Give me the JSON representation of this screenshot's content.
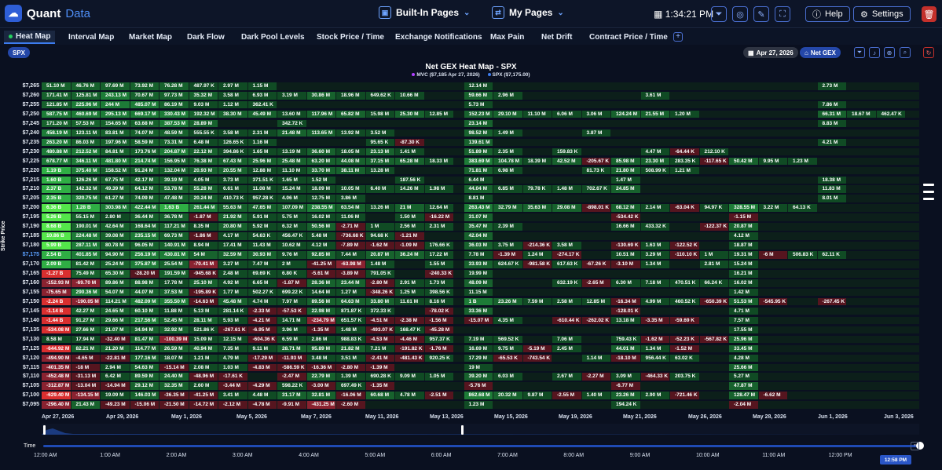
{
  "app": {
    "name_main": "Quant",
    "name_accent": "Data"
  },
  "header": {
    "builtin_pages": "Built-In Pages",
    "my_pages": "My Pages",
    "clock": "1:34:21 PM",
    "help": "Help",
    "settings": "Settings"
  },
  "tabs": [
    "Heat Map",
    "Interval Map",
    "Market Map",
    "Dark Flow",
    "Dark Pool Levels",
    "Stock Price / Time",
    "Exchange Notifications",
    "Max Pain",
    "Net Drift",
    "Contract Price / Time"
  ],
  "active_tab": "Heat Map",
  "toolbar": {
    "ticker": "SPX",
    "date": "Apr 27, 2026",
    "metric": "Net GEX"
  },
  "chart": {
    "title": "Net GEX Heat Map - SPX",
    "legend": [
      {
        "label": "MVC ($7,185 Apr 27, 2026)",
        "color": "#b040ff"
      },
      {
        "label": "SPX ($7,175.00)",
        "color": "#3c7cf0"
      }
    ],
    "y_axis_label": "Strike Price",
    "dates": [
      "Apr 27, 2026",
      "Apr 29, 2026",
      "May 1, 2026",
      "May 5, 2026",
      "May 7, 2026",
      "May 11, 2026",
      "May 13, 2026",
      "May 15, 2026",
      "May 19, 2026",
      "May 21, 2026",
      "May 26, 2026",
      "May 28, 2026",
      "Jun 1, 2026",
      "Jun 3, 2026"
    ],
    "time_ticks": [
      "12:00 AM",
      "1:00 AM",
      "2:00 AM",
      "3:00 AM",
      "4:00 AM",
      "5:00 AM",
      "6:00 AM",
      "7:00 AM",
      "8:00 AM",
      "9:00 AM",
      "10:00 AM",
      "11:00 AM",
      "12:00 PM"
    ],
    "time_label": "Time",
    "current_time": "12:58 PM",
    "spx_strike": "$7,175"
  },
  "chart_data": {
    "type": "heatmap",
    "title": "Net GEX Heat Map - SPX",
    "ylabel": "Strike Price",
    "strikes": [
      "$7,265",
      "$7,260",
      "$7,255",
      "$7,250",
      "$7,245",
      "$7,240",
      "$7,235",
      "$7,230",
      "$7,225",
      "$7,220",
      "$7,215",
      "$7,210",
      "$7,205",
      "$7,200",
      "$7,195",
      "$7,190",
      "$7,185",
      "$7,180",
      "$7,175",
      "$7,170",
      "$7,165",
      "$7,160",
      "$7,155",
      "$7,150",
      "$7,145",
      "$7,140",
      "$7,135",
      "$7,130",
      "$7,125",
      "$7,120",
      "$7,115",
      "$7,110",
      "$7,105",
      "$7,100",
      "$7,095"
    ],
    "rows": [
      [
        "51.10 M",
        "46.76 M",
        "97.69 M",
        "73.92 M",
        "76.28 M",
        "487.97 K",
        "2.97 M",
        "1.15 M",
        "",
        "",
        "",
        "",
        "",
        "",
        "",
        "12.14 M",
        "",
        "",
        "",
        "",
        "",
        "",
        "",
        "",
        "",
        "",
        "",
        "2.73 M",
        "",
        ""
      ],
      [
        "171.41 M",
        "125.81 M",
        "243.13 M",
        "70.67 M",
        "97.73 M",
        "35.32 M",
        "3.58 M",
        "6.93 M",
        "3.19 M",
        "30.86 M",
        "18.96 M",
        "649.62 K",
        "10.66 M",
        "",
        "",
        "59.66 M",
        "2.96 M",
        "",
        "",
        "",
        "",
        "3.61 M",
        "",
        "",
        "",
        "",
        "",
        "",
        "",
        ""
      ],
      [
        "121.85 M",
        "225.96 M",
        "244 M",
        "485.07 M",
        "86.19 M",
        "9.03 M",
        "1.12 M",
        "362.41 K",
        "",
        "",
        "",
        "",
        "",
        "",
        "",
        "5.73 M",
        "",
        "",
        "",
        "",
        "",
        "",
        "",
        "",
        "",
        "",
        "",
        "7.86 M",
        "",
        ""
      ],
      [
        "587.75 M",
        "460.69 M",
        "295.13 M",
        "669.17 M",
        "330.43 M",
        "192.32 M",
        "38.30 M",
        "45.49 M",
        "13.60 M",
        "117.96 M",
        "65.82 M",
        "15.98 M",
        "25.30 M",
        "12.85 M",
        "",
        "152.23 M",
        "29.10 M",
        "11.10 M",
        "6.06 M",
        "3.06 M",
        "124.24 M",
        "21.55 M",
        "1.20 M",
        "",
        "",
        "",
        "",
        "66.31 M",
        "18.67 M",
        "462.47 K"
      ],
      [
        "171.20 M",
        "57.53 M",
        "154.65 M",
        "63.68 M",
        "387.53 M",
        "28.89 M",
        "",
        "",
        "342.72 K",
        "",
        "",
        "",
        "",
        "",
        "",
        "23.14 M",
        "",
        "",
        "",
        "",
        "",
        "",
        "",
        "",
        "",
        "",
        "",
        "8.83 M",
        "",
        ""
      ],
      [
        "458.19 M",
        "123.11 M",
        "83.81 M",
        "74.07 M",
        "48.59 M",
        "555.55 K",
        "3.58 M",
        "2.31 M",
        "21.48 M",
        "113.65 M",
        "13.92 M",
        "3.52 M",
        "",
        "",
        "",
        "98.52 M",
        "1.49 M",
        "",
        "",
        "3.87 M",
        "",
        "",
        "",
        "",
        "",
        "",
        "",
        "",
        "",
        ""
      ],
      [
        "263.20 M",
        "86.03 M",
        "197.96 M",
        "58.59 M",
        "73.31 M",
        "6.48 M",
        "126.65 K",
        "1.16 M",
        "",
        "",
        "",
        "95.65 K",
        "-87.30 K",
        "",
        "",
        "139.61 M",
        "",
        "",
        "",
        "",
        "",
        "",
        "",
        "",
        "",
        "",
        "",
        "4.21 M",
        "",
        ""
      ],
      [
        "480.88 M",
        "212.52 M",
        "84.81 M",
        "173.76 M",
        "204.87 M",
        "22.12 M",
        "394.86 K",
        "1.65 M",
        "13.19 M",
        "36.60 M",
        "18.05 M",
        "23.13 M",
        "1.41 M",
        "",
        "",
        "51.89 M",
        "2.35 M",
        "",
        "159.83 K",
        "",
        "",
        "4.47 M",
        "-64.44 K",
        "212.10 K",
        "",
        "",
        "",
        "",
        "",
        ""
      ],
      [
        "678.77 M",
        "346.11 M",
        "481.80 M",
        "214.74 M",
        "156.95 M",
        "76.38 M",
        "67.43 M",
        "25.96 M",
        "25.48 M",
        "63.20 M",
        "44.08 M",
        "37.15 M",
        "65.28 M",
        "18.33 M",
        "",
        "383.69 M",
        "104.78 M",
        "18.39 M",
        "42.52 M",
        "-205.67 K",
        "85.98 M",
        "23.30 M",
        "283.35 K",
        "-117.65 K",
        "50.42 M",
        "9.95 M",
        "1.23 M",
        "",
        "",
        ""
      ],
      [
        "1.19 B",
        "375.40 M",
        "158.52 M",
        "91.24 M",
        "132.04 M",
        "20.93 M",
        "20.55 M",
        "12.88 M",
        "11.10 M",
        "33.70 M",
        "38.11 M",
        "13.28 M",
        "",
        "",
        "",
        "71.81 M",
        "6.98 M",
        "",
        "",
        "81.73 K",
        "21.80 M",
        "508.99 K",
        "1.21 M",
        "",
        "",
        "",
        "",
        "",
        "",
        ""
      ],
      [
        "1.60 B",
        "126.26 M",
        "67.75 M",
        "42.17 M",
        "39.19 M",
        "4.05 M",
        "3.73 M",
        "371.51 K",
        "1.65 M",
        "1.52 M",
        "",
        "",
        "187.56 K",
        "",
        "",
        "6.44 M",
        "",
        "",
        "",
        "",
        "1.47 M",
        "",
        "",
        "",
        "",
        "",
        "",
        "18.38 M",
        "",
        ""
      ],
      [
        "2.37 B",
        "142.32 M",
        "49.39 M",
        "64.12 M",
        "53.78 M",
        "55.28 M",
        "6.61 M",
        "11.08 M",
        "15.24 M",
        "18.09 M",
        "10.05 M",
        "6.40 M",
        "14.26 M",
        "1.98 M",
        "",
        "44.04 M",
        "6.85 M",
        "79.78 K",
        "1.48 M",
        "702.67 K",
        "24.85 M",
        "",
        "",
        "",
        "",
        "",
        "",
        "11.83 M",
        "",
        ""
      ],
      [
        "2.35 B",
        "320.75 M",
        "61.27 M",
        "74.09 M",
        "47.48 M",
        "20.24 M",
        "410.73 K",
        "957.28 K",
        "4.06 M",
        "12.75 M",
        "3.86 M",
        "",
        "",
        "",
        "",
        "8.81 M",
        "",
        "",
        "",
        "",
        "",
        "",
        "",
        "",
        "",
        "",
        "",
        "8.01 M",
        "",
        ""
      ],
      [
        "6.36 B",
        "1.28 B",
        "303.98 M",
        "422.44 M",
        "1.63 B",
        "261.44 M",
        "55.63 M",
        "47.65 M",
        "107.09 M",
        "238.55 M",
        "63.54 M",
        "13.26 M",
        "21 M",
        "12.64 M",
        "",
        "263.43 M",
        "32.79 M",
        "35.63 M",
        "29.08 M",
        "-898.01 K",
        "68.12 M",
        "2.14 M",
        "-63.04 K",
        "94.97 K",
        "328.55 M",
        "3.22 M",
        "64.13 K",
        "",
        "",
        ""
      ],
      [
        "5.26 B",
        "55.15 M",
        "2.80 M",
        "36.44 M",
        "36.78 M",
        "-1.87 M",
        "21.92 M",
        "5.91 M",
        "5.75 M",
        "16.02 M",
        "11.06 M",
        "",
        "1.50 M",
        "-16.22 M",
        "",
        "31.07 M",
        "",
        "",
        "",
        "",
        "-534.42 K",
        "",
        "",
        "",
        "-1.15 M",
        "",
        "",
        "",
        "",
        ""
      ],
      [
        "8.68 B",
        "190.01 M",
        "42.64 M",
        "168.64 M",
        "117.21 M",
        "8.35 M",
        "20.80 M",
        "5.92 M",
        "6.32 M",
        "50.56 M",
        "-2.71 M",
        "1 M",
        "2.56 M",
        "2.31 M",
        "",
        "35.47 M",
        "2.39 M",
        "",
        "",
        "",
        "16.66 M",
        "433.32 K",
        "",
        "-122.37 K",
        "20.87 M",
        "",
        "",
        "",
        "",
        ""
      ],
      [
        "10.86 B",
        "224.48 M",
        "39.08 M",
        "235.15 M",
        "69.73 M",
        "-1.86 M",
        "4.17 M",
        "54.63 K",
        "456.47 K",
        "5.48 M",
        "-736.68 K",
        "94.68 K",
        "-1.21 M",
        "",
        "",
        "42.04 M",
        "",
        "",
        "",
        "",
        "",
        "",
        "",
        "",
        "4.12 M",
        "",
        "",
        "",
        "",
        ""
      ],
      [
        "5.99 B",
        "287.11 M",
        "80.78 M",
        "96.05 M",
        "140.91 M",
        "8.94 M",
        "17.41 M",
        "11.43 M",
        "10.62 M",
        "4.12 M",
        "-7.89 M",
        "-1.62 M",
        "-1.09 M",
        "176.66 K",
        "",
        "36.03 M",
        "3.75 M",
        "-214.36 K",
        "3.58 M",
        "",
        "-130.69 K",
        "1.63 M",
        "-122.52 K",
        "",
        "18.87 M",
        "",
        "",
        "",
        "",
        ""
      ],
      [
        "2.54 B",
        "401.85 M",
        "94.90 M",
        "256.19 M",
        "430.81 M",
        "54 M",
        "32.59 M",
        "30.93 M",
        "9.76 M",
        "92.85 M",
        "7.44 M",
        "20.87 M",
        "36.24 M",
        "17.22 M",
        "",
        "7.78 M",
        "-1.39 M",
        "1.24 M",
        "-274.17 K",
        "",
        "10.51 M",
        "3.29 M",
        "-110.10 K",
        "1 M",
        "19.31 M",
        "-6 M",
        "506.83 K",
        "62.11 K",
        "",
        ""
      ],
      [
        "2.09 B",
        "81.42 M",
        "25.24 M",
        "375.87 M",
        "25.54 M",
        "-70.41 M",
        "3.27 M",
        "7.47 M",
        "2 M",
        "-41.25 M",
        "-63.98 M",
        "1.48 M",
        "",
        "1.55 M",
        "",
        "33.93 M",
        "624.67 K",
        "-981.58 K",
        "617.63 K",
        "-67.26 K",
        "-3.10 M",
        "1.34 M",
        "",
        "2.81 M",
        "15.24 M",
        "",
        "",
        "",
        "",
        ""
      ],
      [
        "-1.27 B",
        "75.49 M",
        "65.30 M",
        "-28.20 M",
        "191.59 M",
        "-945.68 K",
        "2.48 M",
        "69.69 K",
        "6.80 K",
        "-5.61 M",
        "-3.89 M",
        "791.05 K",
        "",
        "-240.33 K",
        "",
        "19.99 M",
        "",
        "",
        "",
        "",
        "",
        "",
        "",
        "",
        "16.21 M",
        "",
        "",
        "",
        "",
        ""
      ],
      [
        "-152.93 M",
        "-69.70 M",
        "89.86 M",
        "88.98 M",
        "17.78 M",
        "25.10 M",
        "4.92 M",
        "6.65 M",
        "-1.87 M",
        "28.36 M",
        "23.44 M",
        "-2.80 M",
        "2.91 M",
        "1.73 M",
        "",
        "48.09 M",
        "",
        "",
        "632.19 K",
        "-2.65 M",
        "6.30 M",
        "7.18 M",
        "470.51 K",
        "66.24 K",
        "16.02 M",
        "",
        "",
        "",
        "",
        ""
      ],
      [
        "-75.65 M",
        "290.36 M",
        "54.07 M",
        "44.07 M",
        "37.53 M",
        "-195.89 K",
        "1.77 M",
        "502.27 K",
        "699.22 K",
        "14.64 M",
        "1.27 M",
        "-348.26 K",
        "1.25 M",
        "398.56 K",
        "",
        "11.15 M",
        "",
        "",
        "",
        "",
        "",
        "",
        "",
        "",
        "1.42 M",
        "",
        "",
        "",
        "",
        ""
      ],
      [
        "-2.24 B",
        "-190.05 M",
        "114.21 M",
        "482.09 M",
        "355.50 M",
        "-14.63 M",
        "45.48 M",
        "4.74 M",
        "7.97 M",
        "89.56 M",
        "64.63 M",
        "33.80 M",
        "11.61 M",
        "8.16 M",
        "",
        "1 B",
        "23.26 M",
        "7.59 M",
        "2.58 M",
        "12.85 M",
        "-16.34 M",
        "4.99 M",
        "460.52 K",
        "-650.39 K",
        "51.53 M",
        "-545.95 K",
        "",
        "-267.45 K",
        "",
        ""
      ],
      [
        "-1.14 B",
        "42.27 M",
        "24.65 M",
        "60.10 M",
        "11.88 M",
        "5.13 M",
        "281.14 K",
        "-2.33 M",
        "-57.53 K",
        "22.98 M",
        "871.87 K",
        "372.33 K",
        "",
        "-78.02 K",
        "",
        "33.36 M",
        "",
        "",
        "",
        "",
        "-128.01 K",
        "",
        "",
        "",
        "4.71 M",
        "",
        "",
        "",
        "",
        ""
      ],
      [
        "-1.44 B",
        "91.27 M",
        "29.66 M",
        "217.56 M",
        "52.45 M",
        "28.11 M",
        "5.93 M",
        "-4.21 M",
        "14.71 M",
        "-234.79 M",
        "651.57 K",
        "-4.51 M",
        "-2.38 M",
        "-1.56 M",
        "",
        "-15.07 M",
        "4.35 M",
        "",
        "-610.44 K",
        "-262.02 K",
        "13.18 M",
        "-3.35 M",
        "-59.69 K",
        "",
        "7.57 M",
        "",
        "",
        "",
        "",
        ""
      ],
      [
        "-534.08 M",
        "27.66 M",
        "21.07 M",
        "34.94 M",
        "32.92 M",
        "521.86 K",
        "-267.61 K",
        "-6.95 M",
        "3.96 M",
        "-1.35 M",
        "1.48 M",
        "-493.07 K",
        "168.47 K",
        "-45.28 M",
        "",
        "",
        "",
        "",
        "",
        "",
        "",
        "",
        "",
        "",
        "17.55 M",
        "",
        "",
        "",
        "",
        ""
      ],
      [
        "8.58 M",
        "17.94 M",
        "-32.40 M",
        "81.47 M",
        "-100.39 M",
        "15.09 M",
        "12.15 M",
        "-604.36 K",
        "6.59 M",
        "2.86 M",
        "988.83 K",
        "-4.53 M",
        "-4.46 M",
        "957.37 K",
        "",
        "7.19 M",
        "569.52 K",
        "",
        "7.06 M",
        "",
        "759.43 K",
        "-1.62 M",
        "-52.23 K",
        "-567.82 K",
        "25.96 M",
        "",
        "",
        "",
        "",
        ""
      ],
      [
        "-644.92 M",
        "82.21 M",
        "21.20 M",
        "114.77 M",
        "26.59 M",
        "40.94 M",
        "7.35 M",
        "9.11 M",
        "28.71 M",
        "95.89 M",
        "21.82 M",
        "7.21 M",
        "-191.82 K",
        "-1.76 M",
        "",
        "16.69 M",
        "9.75 M",
        "-5.19 M",
        "2.45 M",
        "",
        "44.01 M",
        "1.34 M",
        "-1.52 M",
        "",
        "33.45 M",
        "",
        "",
        "",
        "",
        ""
      ],
      [
        "-494.90 M",
        "-4.65 M",
        "-22.81 M",
        "177.16 M",
        "18.07 M",
        "1.21 M",
        "4.79 M",
        "-17.29 M",
        "-11.93 M",
        "3.48 M",
        "3.51 M",
        "-2.41 M",
        "-481.43 K",
        "920.25 K",
        "",
        "17.29 M",
        "-65.53 K",
        "-743.54 K",
        "",
        "1.14 M",
        "-18.10 M",
        "956.44 K",
        "63.02 K",
        "",
        "4.28 M",
        "",
        "",
        "",
        "",
        ""
      ],
      [
        "-401.35 M",
        "-18 M",
        "2.94 M",
        "54.63 M",
        "-15.14 M",
        "2.08 M",
        "1.03 M",
        "-4.83 M",
        "-586.59 K",
        "-16.36 M",
        "-2.80 M",
        "-1.39 M",
        "",
        "",
        "",
        "19 M",
        "",
        "",
        "",
        "",
        "",
        "",
        "",
        "",
        "25.66 M",
        "",
        "",
        "",
        "",
        ""
      ],
      [
        "-452.48 M",
        "-31.13 M",
        "6.42 M",
        "89.59 M",
        "24.40 M",
        "-48.96 M",
        "-17.61 K",
        "",
        "-2.47 M",
        "22.79 M",
        "1.39 M",
        "690.28 K",
        "9.09 M",
        "1.05 M",
        "",
        "39.20 M",
        "6.03 M",
        "",
        "2.67 M",
        "-2.27 M",
        "3.09 M",
        "-464.33 K",
        "203.75 K",
        "",
        "5.27 M",
        "",
        "",
        "",
        "",
        ""
      ],
      [
        "-312.87 M",
        "-13.04 M",
        "-14.94 M",
        "29.12 M",
        "32.35 M",
        "2.60 M",
        "-3.44 M",
        "-4.29 M",
        "598.22 K",
        "-3.00 M",
        "697.49 K",
        "-1.35 M",
        "",
        "",
        "",
        "-5.76 M",
        "",
        "",
        "",
        "",
        "-6.77 M",
        "",
        "",
        "",
        "47.87 M",
        "",
        "",
        "",
        "",
        ""
      ],
      [
        "-629.40 M",
        "-134.15 M",
        "19.09 M",
        "146.03 M",
        "-36.35 M",
        "-41.25 M",
        "3.41 M",
        "4.48 M",
        "31.17 M",
        "32.81 M",
        "-16.06 M",
        "60.68 M",
        "4.78 M",
        "-2.51 M",
        "",
        "862.68 M",
        "20.32 M",
        "9.87 M",
        "-2.55 M",
        "1.40 M",
        "23.26 M",
        "2.90 M",
        "-721.46 K",
        "",
        "128.47 M",
        "-6.62 M",
        "",
        "",
        "",
        ""
      ],
      [
        "-296.40 M",
        "21.43 M",
        "-49.23 M",
        "-15.06 M",
        "-21.50 M",
        "-14.72 M",
        "-2.12 M",
        "-4.78 M",
        "-9.91 M",
        "-431.25 M",
        "-2.60 M",
        "",
        "",
        "",
        "",
        "1.23 M",
        "",
        "",
        "",
        "",
        "194.24 K",
        "",
        "",
        "",
        "-2.04 M",
        "",
        "",
        "",
        "",
        ""
      ]
    ]
  }
}
